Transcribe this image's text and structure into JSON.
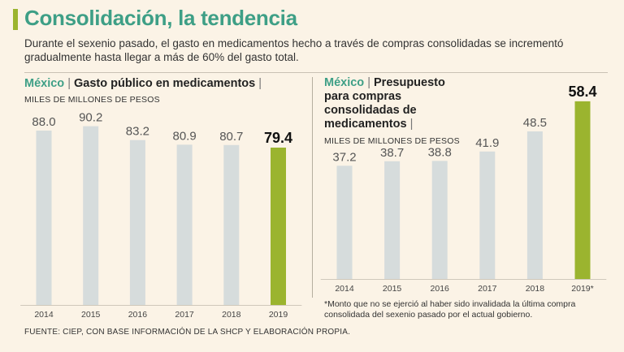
{
  "title": "Consolidación, la tendencia",
  "intro": "Durante el sexenio pasado, el gasto en medicamentos hecho a través de compras consolidadas se incrementó gradualmente hasta llegar a más de 60% del gasto total.",
  "left_panel": {
    "country": "México",
    "separator": "|",
    "heading": "Gasto público en medicamentos",
    "units": "MILES DE MILLONES DE PESOS"
  },
  "right_panel": {
    "country": "México",
    "separator": "|",
    "heading": "Presupuesto para compras consolidadas de medicamentos",
    "units": "MILES DE MILLONES DE PESOS",
    "footnote": "*Monto que no se ejerció al haber sido invalidada la última compra consolidada del sexenio pasado por el actual gobierno."
  },
  "source": "FUENTE: CIEP, CON BASE INFORMACIÓN DE LA SHCP Y ELABORACIÓN PROPIA.",
  "colors": {
    "bar": "#d6dcdc",
    "highlight": "#9bb42f",
    "title": "#3e9f86",
    "label": "#555555",
    "highlight_label": "#111111"
  },
  "chart_data": [
    {
      "type": "bar",
      "title": "Gasto público en medicamentos",
      "ylabel": "MILES DE MILLONES DE PESOS",
      "categories": [
        "2014",
        "2015",
        "2016",
        "2017",
        "2018",
        "2019"
      ],
      "values": [
        88.0,
        90.2,
        83.2,
        80.9,
        80.7,
        79.4
      ],
      "labels": [
        "88.0",
        "90.2",
        "83.2",
        "80.9",
        "80.7",
        "79.4"
      ],
      "highlight_index": 5,
      "ylim": [
        0,
        100
      ]
    },
    {
      "type": "bar",
      "title": "Presupuesto para compras consolidadas de medicamentos",
      "ylabel": "MILES DE MILLONES DE PESOS",
      "categories": [
        "2014",
        "2015",
        "2016",
        "2017",
        "2018",
        "2019*"
      ],
      "values": [
        37.2,
        38.7,
        38.8,
        41.9,
        48.5,
        58.4
      ],
      "labels": [
        "37.2",
        "38.7",
        "38.8",
        "41.9",
        "48.5",
        "58.4"
      ],
      "highlight_index": 5,
      "ylim": [
        0,
        60
      ]
    }
  ]
}
